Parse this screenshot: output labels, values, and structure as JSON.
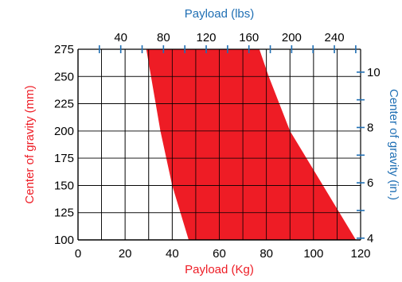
{
  "chart_data": {
    "type": "area",
    "title": "",
    "colors": {
      "region": "#ee1c25",
      "primary_axis_text": "#ee1c25",
      "secondary_axis_text": "#1f6fb4",
      "axis": "#000000",
      "grid": "#000000",
      "secondary_ticks": "#1f6fb4"
    },
    "axes": {
      "x_bottom": {
        "label": "Payload (Kg)",
        "range": [
          0,
          120
        ],
        "ticks": [
          0,
          20,
          40,
          60,
          80,
          100,
          120
        ],
        "tick_labels": [
          "0",
          "20",
          "40",
          "60",
          "80",
          "100",
          "120"
        ]
      },
      "x_top": {
        "label": "Payload (lbs)",
        "range": [
          0,
          264.55
        ],
        "ticks": [
          40,
          80,
          120,
          160,
          200,
          240
        ],
        "tick_labels": [
          "40",
          "80",
          "120",
          "160",
          "200",
          "240"
        ]
      },
      "y_left": {
        "label": "Center of gravity (mm)",
        "range": [
          100,
          275
        ],
        "ticks": [
          100,
          125,
          150,
          175,
          200,
          225,
          250,
          275
        ],
        "tick_labels": [
          "100",
          "125",
          "150",
          "175",
          "200",
          "225",
          "250",
          "275"
        ]
      },
      "y_right": {
        "label": "Center of gravity (in.)",
        "range": [
          3.937,
          10.827
        ],
        "ticks": [
          4,
          6,
          8,
          10
        ],
        "tick_labels": [
          "4",
          "6",
          "8",
          "10"
        ]
      }
    },
    "grid": true,
    "region": {
      "name": "",
      "lower_boundary": [
        {
          "x": 47,
          "y": 100
        },
        {
          "x": 40,
          "y": 150
        },
        {
          "x": 35,
          "y": 200
        },
        {
          "x": 31,
          "y": 250
        },
        {
          "x": 29,
          "y": 275
        }
      ],
      "upper_boundary": [
        {
          "x": 118,
          "y": 100
        },
        {
          "x": 104,
          "y": 150
        },
        {
          "x": 90,
          "y": 200
        },
        {
          "x": 81,
          "y": 250
        },
        {
          "x": 77,
          "y": 275
        }
      ]
    }
  }
}
